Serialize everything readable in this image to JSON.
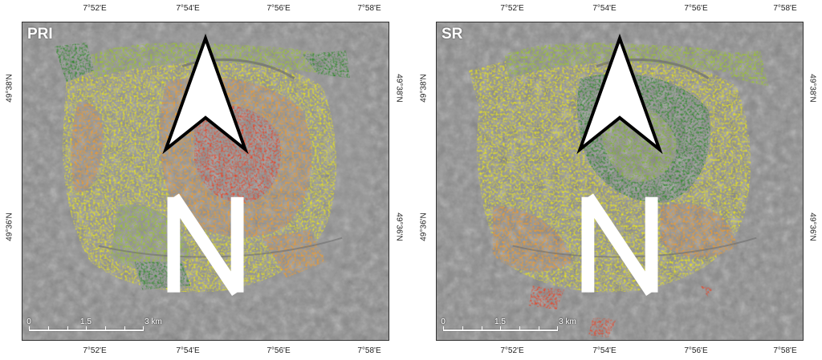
{
  "panels": [
    {
      "id": "pri",
      "label": "PRI",
      "top_ticks": [
        "7°52'E",
        "7°54'E",
        "7°56'E",
        "7°58'E"
      ],
      "bottom_ticks": [
        "7°52'E",
        "7°54'E",
        "7°56'E",
        "7°58'E"
      ],
      "left_ticks": [
        "49°38'N",
        "49°36'N"
      ],
      "right_ticks": [
        "49°38'N",
        "49°36'N"
      ],
      "scale": {
        "labels": [
          "0",
          "1.5",
          "3 km"
        ]
      },
      "north_icon": "north-arrow-icon"
    },
    {
      "id": "sr",
      "label": "SR",
      "top_ticks": [
        "7°52'E",
        "7°54'E",
        "7°56'E",
        "7°58'E"
      ],
      "bottom_ticks": [
        "7°52'E",
        "7°54'E",
        "7°56'E",
        "7°58'E"
      ],
      "left_ticks": [
        "49°38'N",
        "49°36'N"
      ],
      "right_ticks": [
        "49°38'N",
        "49°36'N"
      ],
      "scale": {
        "labels": [
          "0",
          "1.5",
          "3 km"
        ]
      },
      "north_icon": "north-arrow-icon"
    }
  ],
  "colors": {
    "background_gray": "#8a8a8a",
    "green": "#2f8a2a",
    "yellow": "#e6e21c",
    "orange": "#f09a2a",
    "red": "#e8452a",
    "label_white": "#ffffff"
  }
}
